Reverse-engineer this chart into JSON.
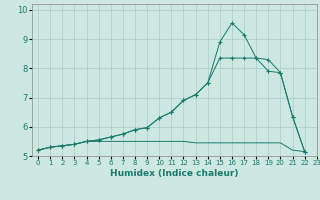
{
  "xlabel": "Humidex (Indice chaleur)",
  "ylabel": "",
  "xlim": [
    -0.5,
    23
  ],
  "ylim": [
    5.0,
    10.2
  ],
  "xticks": [
    0,
    1,
    2,
    3,
    4,
    5,
    6,
    7,
    8,
    9,
    10,
    11,
    12,
    13,
    14,
    15,
    16,
    17,
    18,
    19,
    20,
    21,
    22,
    23
  ],
  "yticks": [
    5,
    6,
    7,
    8,
    9,
    10
  ],
  "bg_color": "#cce8e0",
  "grid_color": "#aacccc",
  "line_color": "#1a7a6e",
  "line1_x": [
    0,
    1,
    2,
    3,
    4,
    5,
    6,
    7,
    8,
    9,
    10,
    11,
    12,
    13,
    14,
    15,
    16,
    17,
    18,
    19,
    20,
    21,
    22
  ],
  "line1_y": [
    5.2,
    5.3,
    5.35,
    5.4,
    5.5,
    5.5,
    5.5,
    5.5,
    5.5,
    5.5,
    5.5,
    5.5,
    5.5,
    5.45,
    5.45,
    5.45,
    5.45,
    5.45,
    5.45,
    5.45,
    5.45,
    5.2,
    5.15
  ],
  "line2_x": [
    0,
    1,
    2,
    3,
    4,
    5,
    6,
    7,
    8,
    9,
    10,
    11,
    12,
    13,
    14,
    15,
    16,
    17,
    18,
    19,
    20,
    21,
    22
  ],
  "line2_y": [
    5.2,
    5.3,
    5.35,
    5.4,
    5.5,
    5.55,
    5.65,
    5.75,
    5.9,
    5.97,
    6.3,
    6.5,
    6.9,
    7.1,
    7.5,
    8.9,
    9.55,
    9.15,
    8.35,
    8.3,
    7.85,
    6.35,
    5.15
  ],
  "line3_x": [
    0,
    1,
    2,
    3,
    4,
    5,
    6,
    7,
    8,
    9,
    10,
    11,
    12,
    13,
    14,
    15,
    16,
    17,
    18,
    19,
    20,
    21,
    22
  ],
  "line3_y": [
    5.2,
    5.3,
    5.35,
    5.4,
    5.5,
    5.55,
    5.65,
    5.75,
    5.9,
    5.97,
    6.3,
    6.5,
    6.9,
    7.1,
    7.5,
    8.35,
    8.35,
    8.35,
    8.35,
    7.9,
    7.85,
    6.35,
    5.15
  ]
}
